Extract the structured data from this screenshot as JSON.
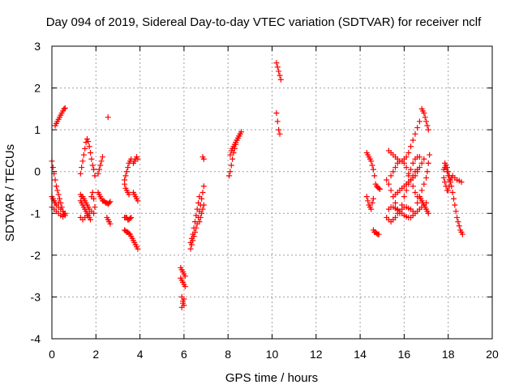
{
  "chart_data": {
    "type": "scatter",
    "title": "Day 094 of 2019, Sidereal Day-to-day VTEC variation (SDTVAR) for receiver nclf",
    "xlabel": "GPS time / hours",
    "ylabel": "SDTVAR / TECUs",
    "xlim": [
      0,
      20
    ],
    "ylim": [
      -4,
      3
    ],
    "xticks": [
      "0",
      "2",
      "4",
      "6",
      "8",
      "10",
      "12",
      "14",
      "16",
      "18",
      "20"
    ],
    "yticks": [
      "-4",
      "-3",
      "-2",
      "-1",
      "0",
      "1",
      "2",
      "3"
    ],
    "grid": true,
    "marker": "+",
    "color": "#ff0000",
    "series": [
      {
        "name": "s1",
        "x": [
          0.0,
          0.05,
          0.1,
          0.15,
          0.2,
          0.25,
          0.3,
          0.35,
          0.4,
          0.45,
          0.5,
          0.55,
          0.6
        ],
        "y": [
          0.25,
          0.1,
          -0.05,
          -0.2,
          -0.35,
          -0.45,
          -0.55,
          -0.65,
          -0.75,
          -0.85,
          -0.95,
          -1.02,
          -1.05
        ]
      },
      {
        "name": "s2",
        "x": [
          0.0,
          0.05,
          0.1,
          0.15,
          0.2,
          0.3,
          0.4,
          0.5,
          0.6,
          0.0,
          0.1,
          0.2,
          0.3,
          0.4,
          0.5,
          0.1,
          0.2,
          0.3
        ],
        "y": [
          -0.6,
          -0.65,
          -0.7,
          -0.75,
          -0.8,
          -0.85,
          -0.9,
          -0.95,
          -1.0,
          -0.85,
          -0.9,
          -0.95,
          -1.0,
          -1.05,
          -1.08,
          -0.7,
          -0.8,
          -0.75
        ]
      },
      {
        "name": "s3",
        "x": [
          0.15,
          0.2,
          0.25,
          0.3,
          0.35,
          0.4,
          0.45,
          0.5,
          0.55,
          0.6
        ],
        "y": [
          1.1,
          1.15,
          1.2,
          1.25,
          1.3,
          1.35,
          1.4,
          1.45,
          1.5,
          1.52
        ]
      },
      {
        "name": "s4",
        "x": [
          1.3,
          1.35,
          1.4,
          1.45,
          1.5,
          1.55,
          1.6,
          1.65,
          1.7,
          1.75,
          1.8,
          1.85,
          1.9,
          1.95
        ],
        "y": [
          -0.7,
          -0.75,
          -0.8,
          -0.85,
          -0.9,
          -0.95,
          -1.0,
          -1.05,
          -1.1,
          -1.15,
          -0.6,
          -0.5,
          -0.65,
          -0.85
        ]
      },
      {
        "name": "s5",
        "x": [
          1.3,
          1.35,
          1.4,
          1.45,
          1.5,
          1.55,
          1.6,
          1.65,
          1.7,
          1.3,
          1.4,
          1.5,
          1.6,
          1.7,
          1.8,
          1.9
        ],
        "y": [
          -0.55,
          -0.6,
          -0.6,
          -0.65,
          -0.7,
          -0.75,
          -0.8,
          -0.85,
          -0.9,
          -1.1,
          -1.15,
          -1.1,
          -1.05,
          -1.0,
          -0.95,
          -1.0
        ]
      },
      {
        "name": "s6",
        "x": [
          1.3,
          1.35,
          1.4,
          1.45,
          1.5,
          1.55,
          1.6,
          1.65,
          1.7,
          1.75,
          1.8,
          1.85,
          1.9,
          1.95
        ],
        "y": [
          -0.05,
          0.1,
          0.25,
          0.4,
          0.55,
          0.7,
          0.78,
          0.72,
          0.6,
          0.45,
          0.3,
          0.15,
          0.05,
          -0.1
        ]
      },
      {
        "name": "s7",
        "x": [
          2.1,
          2.15,
          2.2,
          2.25,
          2.3,
          2.35,
          2.4,
          2.45,
          2.5,
          2.55,
          2.6,
          2.65
        ],
        "y": [
          -0.5,
          -0.55,
          -0.6,
          -0.65,
          -0.7,
          -0.7,
          -0.72,
          -0.75,
          -0.75,
          -0.78,
          -0.75,
          -0.72
        ]
      },
      {
        "name": "s8",
        "x": [
          2.1,
          2.15,
          2.2,
          2.25,
          2.3
        ],
        "y": [
          -0.05,
          0.05,
          0.15,
          0.25,
          0.35
        ]
      },
      {
        "name": "s9",
        "x": [
          2.5,
          2.55,
          2.6,
          2.65
        ],
        "y": [
          -1.1,
          -1.15,
          -1.2,
          -1.25
        ]
      },
      {
        "name": "s10",
        "x": [
          2.55
        ],
        "y": [
          1.3
        ]
      },
      {
        "name": "s11",
        "x": [
          3.3,
          3.35,
          3.4,
          3.45,
          3.5,
          3.55,
          3.6
        ],
        "y": [
          -1.1,
          -1.1,
          -1.1,
          -1.15,
          -1.15,
          -1.12,
          -1.1
        ]
      },
      {
        "name": "s12",
        "x": [
          3.3,
          3.35,
          3.4,
          3.45,
          3.5,
          3.55,
          3.6
        ],
        "y": [
          -0.2,
          -0.1,
          0.0,
          0.1,
          0.2,
          0.25,
          0.3
        ]
      },
      {
        "name": "s13",
        "x": [
          3.3,
          3.35,
          3.4,
          3.45,
          3.5,
          3.55,
          3.6,
          3.65,
          3.7,
          3.75,
          3.8,
          3.85,
          3.9
        ],
        "y": [
          -1.4,
          -1.42,
          -1.45,
          -1.45,
          -1.48,
          -1.5,
          -1.55,
          -1.6,
          -1.65,
          -1.7,
          -1.75,
          -1.8,
          -1.85
        ]
      },
      {
        "name": "s14",
        "x": [
          3.3,
          3.35,
          3.4,
          3.45,
          3.5
        ],
        "y": [
          -0.3,
          -0.4,
          -0.45,
          -0.5,
          -0.55
        ]
      },
      {
        "name": "s15",
        "x": [
          3.7,
          3.75,
          3.8,
          3.85,
          3.9
        ],
        "y": [
          -0.5,
          -0.55,
          -0.6,
          -0.65,
          -0.7
        ]
      },
      {
        "name": "s16",
        "x": [
          3.7,
          3.75,
          3.8,
          3.85,
          3.9
        ],
        "y": [
          0.2,
          0.25,
          0.3,
          0.35,
          0.3
        ]
      },
      {
        "name": "s17",
        "x": [
          5.85,
          5.9,
          5.95,
          6.0,
          6.05,
          5.85,
          5.9,
          5.95,
          6.0,
          6.05,
          5.9,
          5.95,
          6.0
        ],
        "y": [
          -2.3,
          -2.35,
          -2.4,
          -2.45,
          -2.5,
          -2.55,
          -2.6,
          -2.65,
          -2.7,
          -2.75,
          -3.0,
          -3.1,
          -3.2
        ]
      },
      {
        "name": "s18",
        "x": [
          5.9,
          5.95,
          6.0
        ],
        "y": [
          -3.25,
          -3.15,
          -3.05
        ]
      },
      {
        "name": "s19",
        "x": [
          6.3,
          6.35,
          6.4,
          6.45,
          6.5,
          6.55,
          6.6,
          6.65,
          6.7,
          6.75,
          6.8,
          6.85,
          6.9
        ],
        "y": [
          -1.85,
          -1.75,
          -1.65,
          -1.55,
          -1.45,
          -1.35,
          -1.25,
          -1.1,
          -0.95,
          -0.8,
          -0.65,
          -0.5,
          -0.35
        ]
      },
      {
        "name": "s20",
        "x": [
          6.3,
          6.35,
          6.4,
          6.45,
          6.5,
          6.55,
          6.6,
          6.65,
          6.7
        ],
        "y": [
          -1.7,
          -1.6,
          -1.5,
          -1.35,
          -1.2,
          -1.05,
          -0.9,
          -0.75,
          -0.6
        ]
      },
      {
        "name": "s21",
        "x": [
          6.7,
          6.75,
          6.8,
          6.85,
          6.9
        ],
        "y": [
          -1.2,
          -1.1,
          -1.0,
          -0.9,
          -0.8
        ]
      },
      {
        "name": "s22",
        "x": [
          6.85,
          6.9
        ],
        "y": [
          0.35,
          0.3
        ]
      },
      {
        "name": "s23",
        "x": [
          8.05,
          8.1,
          8.15,
          8.2,
          8.25,
          8.3,
          8.35,
          8.4,
          8.45,
          8.5,
          8.55,
          8.6
        ],
        "y": [
          -0.1,
          0.0,
          0.15,
          0.3,
          0.45,
          0.55,
          0.65,
          0.75,
          0.8,
          0.85,
          0.9,
          0.95
        ]
      },
      {
        "name": "s24",
        "x": [
          8.1,
          8.15,
          8.2,
          8.25,
          8.3,
          8.35,
          8.4,
          8.45,
          8.5,
          8.55
        ],
        "y": [
          0.4,
          0.5,
          0.55,
          0.6,
          0.65,
          0.7,
          0.75,
          0.8,
          0.85,
          0.9
        ]
      },
      {
        "name": "s25",
        "x": [
          10.2,
          10.25,
          10.3,
          10.35,
          10.4
        ],
        "y": [
          2.6,
          2.5,
          2.4,
          2.3,
          2.2
        ]
      },
      {
        "name": "s26",
        "x": [
          10.2,
          10.25,
          10.3,
          10.35
        ],
        "y": [
          1.4,
          1.2,
          1.0,
          0.9
        ]
      },
      {
        "name": "s27",
        "x": [
          14.3,
          14.35,
          14.4,
          14.45,
          14.5,
          14.55,
          14.6,
          14.65,
          14.7,
          14.75,
          14.8,
          14.85,
          14.9
        ],
        "y": [
          0.45,
          0.4,
          0.35,
          0.3,
          0.25,
          0.15,
          0.05,
          -0.1,
          -0.3,
          -0.35,
          -0.38,
          -0.4,
          -0.42
        ]
      },
      {
        "name": "s28",
        "x": [
          14.3,
          14.35,
          14.4,
          14.45,
          14.5,
          14.55,
          14.6
        ],
        "y": [
          -0.6,
          -0.7,
          -0.8,
          -0.85,
          -0.9,
          -0.75,
          -0.65
        ]
      },
      {
        "name": "s29",
        "x": [
          14.6,
          14.65,
          14.7,
          14.75,
          14.8,
          14.85
        ],
        "y": [
          -1.4,
          -1.45,
          -1.45,
          -1.48,
          -1.5,
          -1.5
        ]
      },
      {
        "name": "s30",
        "x": [
          15.2,
          15.3,
          15.4,
          15.5,
          15.6,
          15.7,
          15.8,
          15.9,
          16.0,
          16.1,
          16.2,
          16.3,
          16.4
        ],
        "y": [
          -1.1,
          -1.15,
          -1.2,
          -1.15,
          -1.1,
          -1.0,
          -0.95,
          -0.9,
          -0.85,
          -0.85,
          -0.88,
          -0.9,
          -0.95
        ]
      },
      {
        "name": "s31",
        "x": [
          15.3,
          15.4,
          15.5,
          15.6,
          15.7,
          15.8,
          15.9,
          16.0,
          16.1,
          16.2,
          16.3,
          16.4,
          16.5,
          16.6,
          16.7,
          16.8,
          16.9,
          17.0
        ],
        "y": [
          -0.9,
          -0.85,
          -0.85,
          -0.88,
          -0.92,
          -0.95,
          -1.0,
          -1.05,
          -1.08,
          -1.1,
          -1.1,
          -1.05,
          -1.0,
          -0.95,
          -0.9,
          -0.85,
          -0.8,
          -0.75
        ]
      },
      {
        "name": "s32",
        "x": [
          15.2,
          15.3,
          15.4,
          15.5,
          15.6,
          15.7,
          15.8,
          15.9,
          16.0,
          16.1,
          16.2,
          16.3,
          16.4,
          16.5,
          16.6
        ],
        "y": [
          -0.2,
          -0.3,
          -0.45,
          -0.6,
          -0.75,
          -0.9,
          -1.0,
          -0.8,
          -0.6,
          -0.45,
          -0.3,
          -0.2,
          -0.1,
          0.0,
          0.05
        ]
      },
      {
        "name": "s33",
        "x": [
          15.4,
          15.5,
          15.6,
          15.7,
          15.8,
          15.9,
          16.0,
          16.1,
          16.2,
          16.3,
          16.4,
          16.5,
          16.6
        ],
        "y": [
          -0.1,
          0.0,
          0.1,
          0.2,
          0.25,
          0.25,
          0.2,
          0.1,
          -0.05,
          -0.2,
          -0.35,
          -0.5,
          -0.6
        ]
      },
      {
        "name": "s34",
        "x": [
          15.6,
          15.7,
          15.8,
          15.9,
          16.0,
          16.1,
          16.2,
          16.3,
          16.4,
          16.5,
          16.6,
          16.7,
          16.8,
          16.9
        ],
        "y": [
          -0.55,
          -0.5,
          -0.45,
          -0.4,
          -0.35,
          -0.3,
          -0.25,
          -0.2,
          -0.15,
          -0.1,
          0.0,
          0.1,
          0.2,
          0.3
        ]
      },
      {
        "name": "s35",
        "x": [
          15.3,
          15.4,
          15.5,
          15.6,
          15.7,
          15.8,
          15.9,
          16.0,
          16.1,
          16.2,
          16.3,
          16.4,
          16.5,
          16.6,
          16.7
        ],
        "y": [
          0.5,
          0.45,
          0.4,
          0.35,
          0.3,
          0.25,
          0.25,
          0.3,
          0.35,
          0.45,
          0.6,
          0.75,
          0.9,
          1.05,
          1.2
        ]
      },
      {
        "name": "s36",
        "x": [
          16.1,
          16.2,
          16.3,
          16.4,
          16.5,
          16.6,
          16.7
        ],
        "y": [
          -0.3,
          -0.1,
          0.05,
          0.2,
          0.3,
          0.35,
          0.35
        ]
      },
      {
        "name": "s37",
        "x": [
          16.6,
          16.7,
          16.8,
          16.9,
          17.0,
          17.05,
          17.1,
          17.15
        ],
        "y": [
          -0.75,
          -0.6,
          -0.45,
          -0.3,
          -0.15,
          0.0,
          0.2,
          0.4
        ]
      },
      {
        "name": "s38",
        "x": [
          16.8,
          16.85,
          16.9,
          16.95,
          17.0,
          17.05,
          17.1
        ],
        "y": [
          1.5,
          1.45,
          1.4,
          1.3,
          1.2,
          1.1,
          1.0
        ]
      },
      {
        "name": "s39",
        "x": [
          16.7,
          16.75,
          16.8,
          16.85,
          16.9,
          16.95,
          17.0,
          17.05,
          17.1
        ],
        "y": [
          -0.6,
          -0.65,
          -0.7,
          -0.75,
          -0.8,
          -0.85,
          -0.9,
          -0.95,
          -1.0
        ]
      },
      {
        "name": "s40",
        "x": [
          17.8,
          17.85,
          17.9,
          17.95,
          18.0,
          18.05,
          18.1,
          18.15,
          18.2,
          18.25,
          18.3,
          18.35,
          18.4,
          18.45,
          18.5,
          18.55,
          18.6,
          18.65
        ],
        "y": [
          0.05,
          0.1,
          0.15,
          0.1,
          0.0,
          -0.1,
          -0.2,
          -0.35,
          -0.5,
          -0.65,
          -0.8,
          -0.95,
          -1.1,
          -1.2,
          -1.3,
          -1.4,
          -1.45,
          -1.5
        ]
      },
      {
        "name": "s41",
        "x": [
          17.8,
          17.85,
          17.9,
          17.95,
          18.0,
          18.05,
          18.1,
          18.15,
          18.2,
          18.3,
          18.4,
          18.5,
          18.6
        ],
        "y": [
          -0.15,
          -0.25,
          -0.35,
          -0.45,
          -0.45,
          -0.35,
          -0.25,
          -0.15,
          -0.1,
          -0.15,
          -0.2,
          -0.22,
          -0.25
        ]
      },
      {
        "name": "s42",
        "x": [
          17.85,
          17.9,
          17.95,
          18.0,
          18.05
        ],
        "y": [
          0.2,
          0.1,
          0.0,
          -0.1,
          -0.2
        ]
      }
    ]
  }
}
